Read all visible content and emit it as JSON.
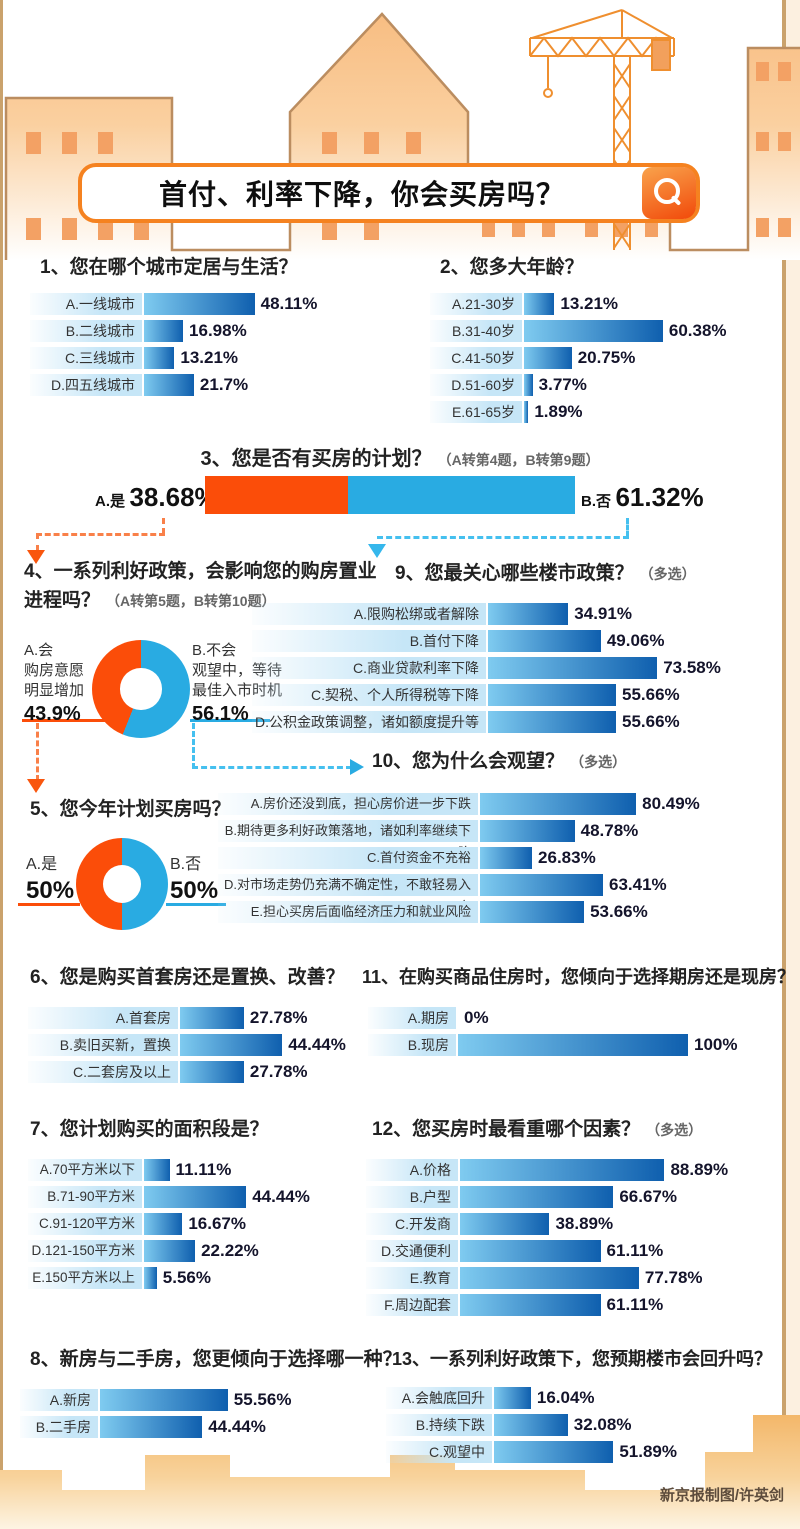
{
  "page": {
    "title": "首付、利率下降，你会买房吗？",
    "credit": "新京报制图/许英剑",
    "icons": {
      "search": "magnifier"
    }
  },
  "colors": {
    "orange": "#fb4d09",
    "blue": "#29abe2",
    "bar_start": "#7fcbf0",
    "bar_end": "#0f5fae",
    "label_bg": "#c6e6f7",
    "dashed_orange": "#f98049",
    "dashed_blue": "#45c0ef",
    "skyline_fill": "#fbd3a4",
    "skyline_outline": "#bb8d60",
    "window": "#f3a164",
    "search_border": "#f58220"
  },
  "chart_data": [
    {
      "id": "q1",
      "type": "bar",
      "title": "1、您在哪个城市定居与生活？",
      "note": "",
      "unit": "%",
      "categories": [
        "A.一线城市",
        "B.二线城市",
        "C.三线城市",
        "D.四五线城市"
      ],
      "values": [
        48.11,
        16.98,
        13.21,
        21.7
      ]
    },
    {
      "id": "q2",
      "type": "bar",
      "title": "2、您多大年龄？",
      "note": "",
      "unit": "%",
      "categories": [
        "A.21-30岁",
        "B.31-40岁",
        "C.41-50岁",
        "D.51-60岁",
        "E.61-65岁"
      ],
      "values": [
        13.21,
        60.38,
        20.75,
        3.77,
        1.89
      ]
    },
    {
      "id": "q3",
      "type": "stacked-bar",
      "title": "3、您是否有买房的计划？",
      "note": "（A转第4题，B转第9题）",
      "unit": "%",
      "segments": [
        {
          "label": "A.是",
          "value": 38.68,
          "color": "orange"
        },
        {
          "label": "B.否",
          "value": 61.32,
          "color": "blue"
        }
      ]
    },
    {
      "id": "q4",
      "type": "donut",
      "title": "4、一系列利好政策，会影响您的购房置业进程吗？",
      "note": "（A转第5题，B转第10题）",
      "unit": "%",
      "segments": [
        {
          "lines": [
            "A.会",
            "购房意愿",
            "明显增加"
          ],
          "value": 43.9,
          "color": "orange"
        },
        {
          "lines": [
            "B.不会",
            "观望中，等待",
            "最佳入市时机"
          ],
          "value": 56.1,
          "color": "blue"
        }
      ]
    },
    {
      "id": "q5",
      "type": "donut",
      "title": "5、您今年计划买房吗？",
      "note": "",
      "unit": "%",
      "segments": [
        {
          "lines": [
            "A.是"
          ],
          "value": 50,
          "color": "orange"
        },
        {
          "lines": [
            "B.否"
          ],
          "value": 50,
          "color": "blue"
        }
      ]
    },
    {
      "id": "q6",
      "type": "bar",
      "title": "6、您是购买首套房还是置换、改善？",
      "note": "",
      "unit": "%",
      "categories": [
        "A.首套房",
        "B.卖旧买新，置换",
        "C.二套房及以上"
      ],
      "values": [
        27.78,
        44.44,
        27.78
      ]
    },
    {
      "id": "q7",
      "type": "bar",
      "title": "7、您计划购买的面积段是？",
      "note": "",
      "unit": "%",
      "categories": [
        "A.70平方米以下",
        "B.71-90平方米",
        "C.91-120平方米",
        "D.121-150平方米",
        "E.150平方米以上"
      ],
      "values": [
        11.11,
        44.44,
        16.67,
        22.22,
        5.56
      ]
    },
    {
      "id": "q8",
      "type": "bar",
      "title": "8、新房与二手房，您更倾向于选择哪一种？",
      "note": "",
      "unit": "%",
      "categories": [
        "A.新房",
        "B.二手房"
      ],
      "values": [
        55.56,
        44.44
      ]
    },
    {
      "id": "q9",
      "type": "bar",
      "title": "9、您最关心哪些楼市政策？",
      "note": "（多选）",
      "unit": "%",
      "categories": [
        "A.限购松绑或者解除",
        "B.首付下降",
        "C.商业贷款利率下降",
        "C.契税、个人所得税等下降",
        "D.公积金政策调整，诸如额度提升等"
      ],
      "values": [
        34.91,
        49.06,
        73.58,
        55.66,
        55.66
      ]
    },
    {
      "id": "q10",
      "type": "bar",
      "title": "10、您为什么会观望？",
      "note": "（多选）",
      "unit": "%",
      "categories": [
        "A.房价还没到底，担心房价进一步下跌",
        "B.期待更多利好政策落地，诸如利率继续下降",
        "C.首付资金不充裕",
        "D.对市场走势仍充满不确定性，不敢轻易入市",
        "E.担心买房后面临经济压力和就业风险"
      ],
      "values": [
        80.49,
        48.78,
        26.83,
        63.41,
        53.66
      ]
    },
    {
      "id": "q11",
      "type": "bar",
      "title": "11、在购买商品住房时，您倾向于选择期房还是现房？",
      "note": "",
      "unit": "%",
      "categories": [
        "A.期房",
        "B.现房"
      ],
      "values": [
        0,
        100
      ]
    },
    {
      "id": "q12",
      "type": "bar",
      "title": "12、您买房时最看重哪个因素？",
      "note": "（多选）",
      "unit": "%",
      "categories": [
        "A.价格",
        "B.户型",
        "C.开发商",
        "D.交通便利",
        "E.教育",
        "F.周边配套"
      ],
      "values": [
        88.89,
        66.67,
        38.89,
        61.11,
        77.78,
        61.11
      ]
    },
    {
      "id": "q13",
      "type": "bar",
      "title": "13、一系列利好政策下，您预期楼市会回升吗？",
      "note": "",
      "unit": "%",
      "categories": [
        "A.会触底回升",
        "B.持续下跌",
        "C.观望中"
      ],
      "values": [
        16.04,
        32.08,
        51.89
      ]
    }
  ]
}
